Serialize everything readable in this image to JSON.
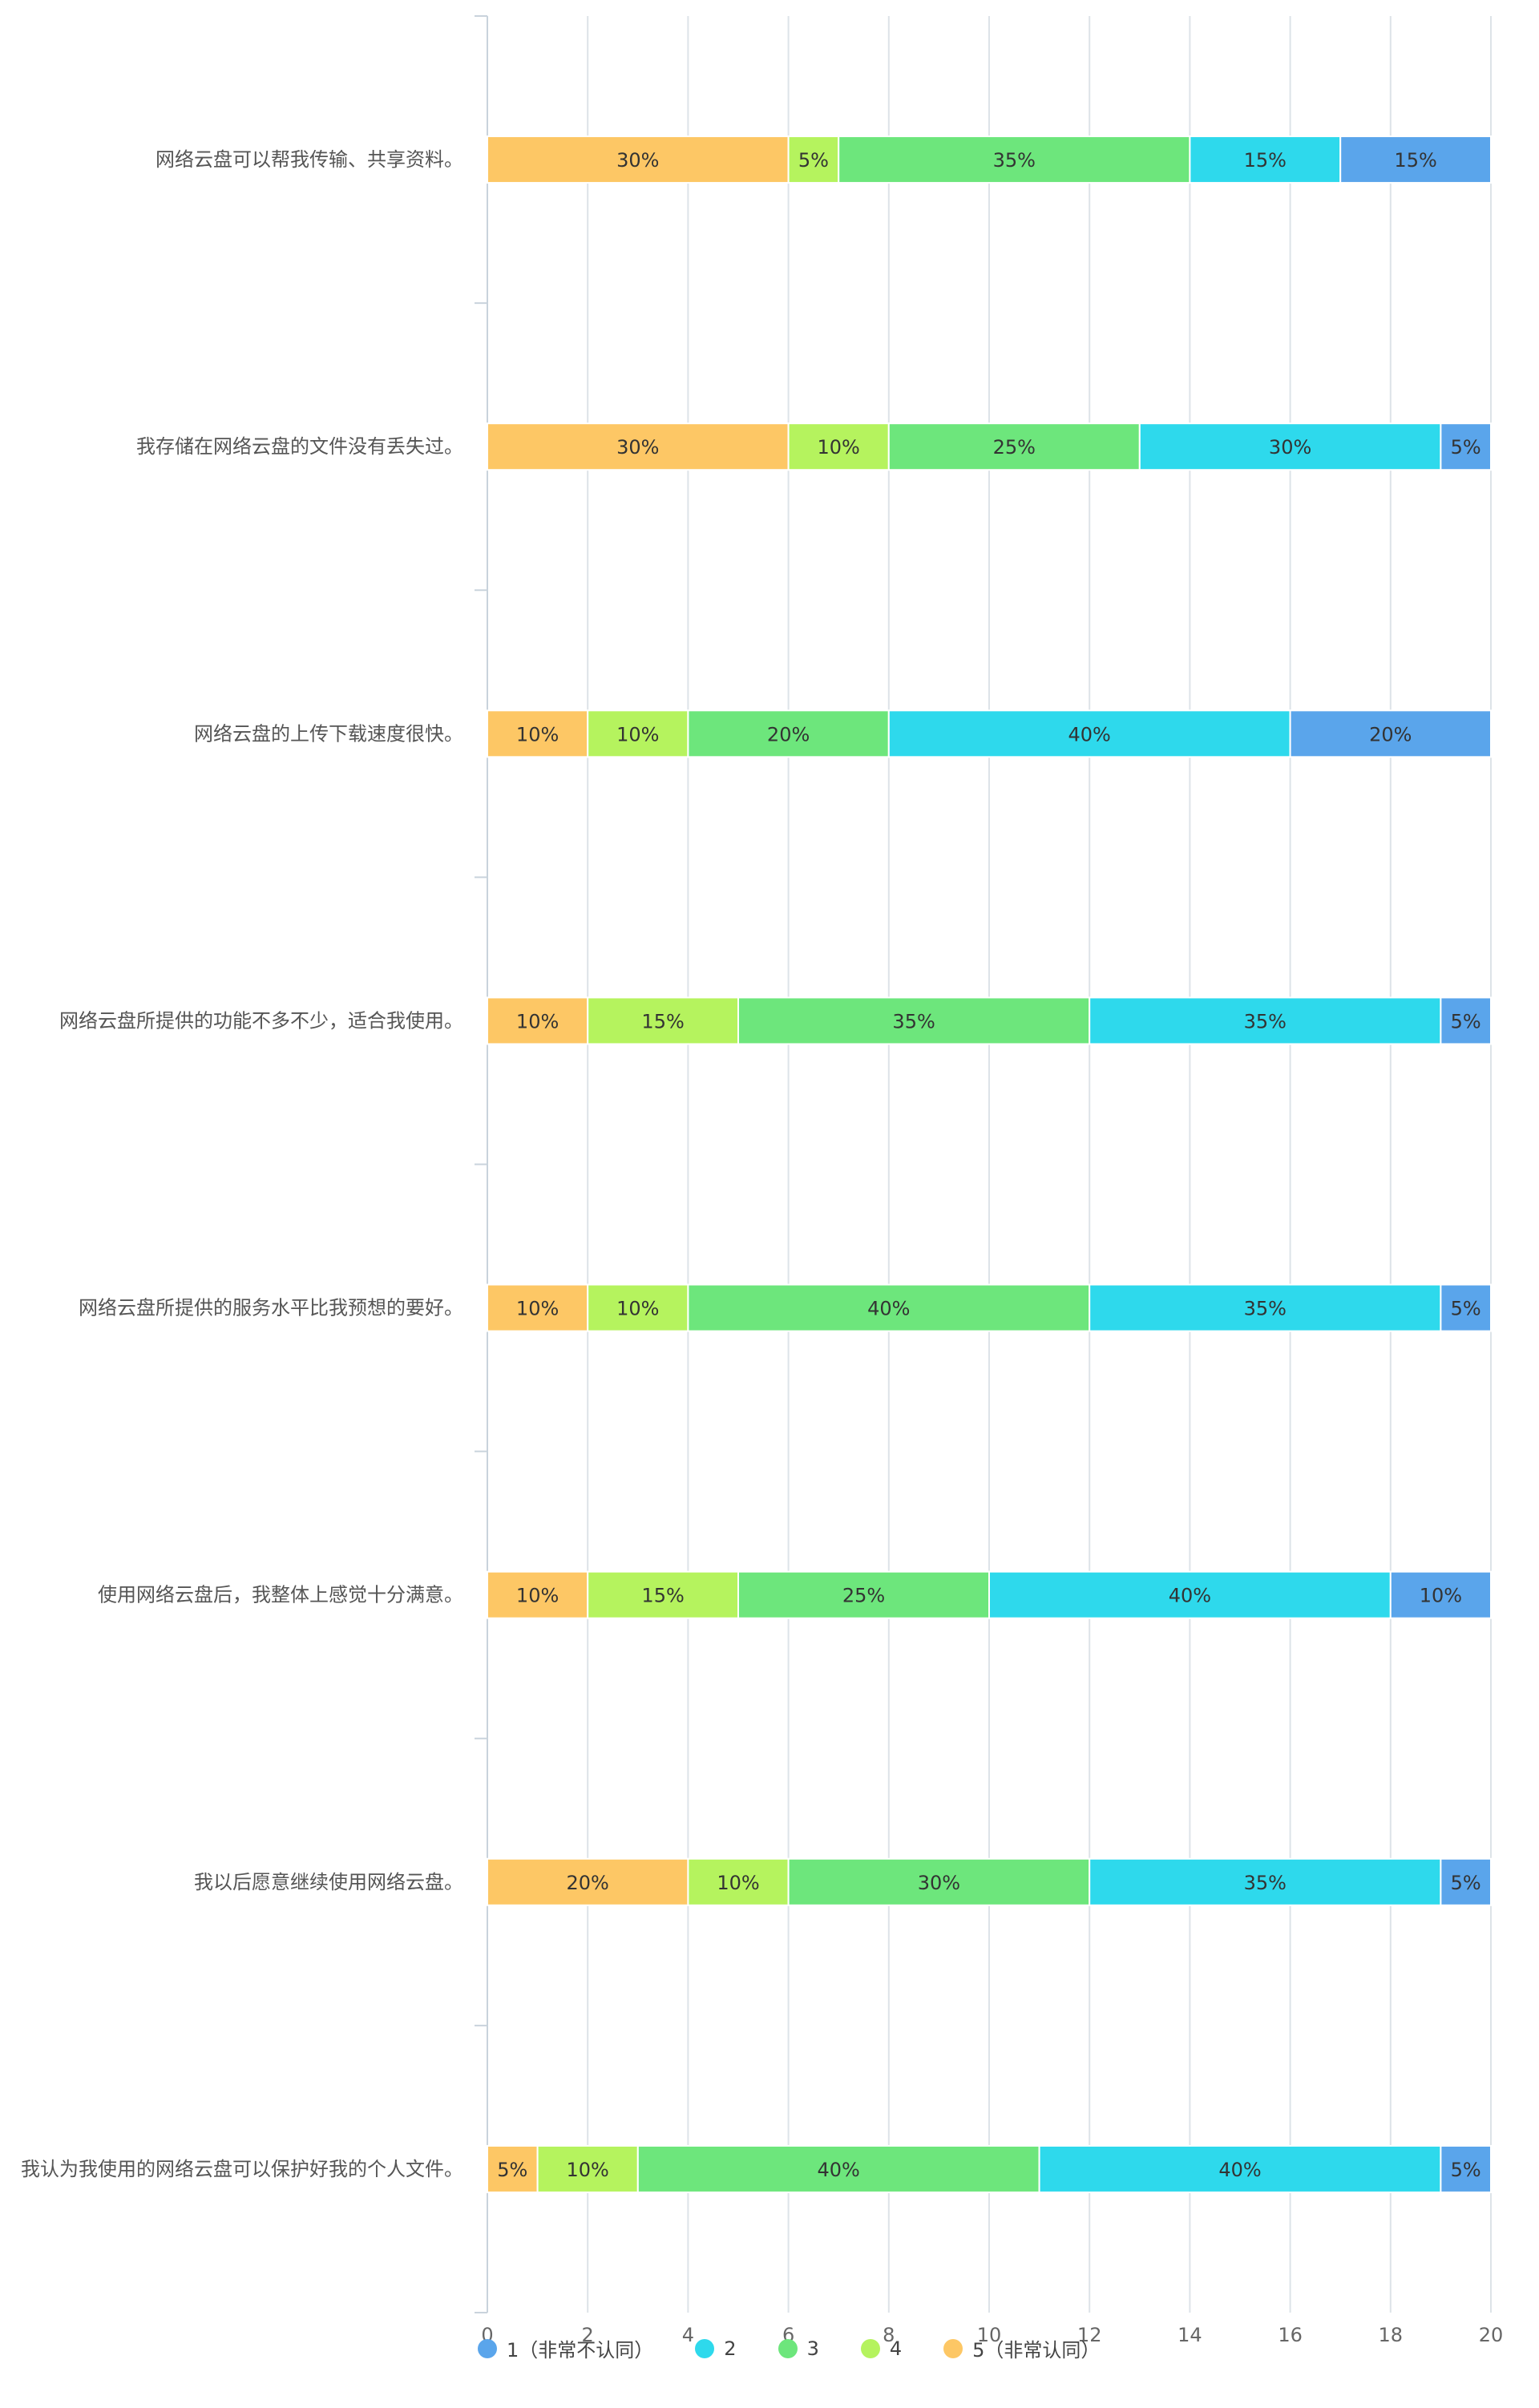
{
  "chart_data": {
    "type": "bar",
    "orientation": "horizontal",
    "stacked": true,
    "title": "",
    "xlabel": "",
    "ylabel": "",
    "xlim": [
      0,
      20
    ],
    "x_ticks": [
      0,
      2,
      4,
      6,
      8,
      10,
      12,
      14,
      16,
      18,
      20
    ],
    "grid": true,
    "legend_position": "bottom",
    "categories": [
      "网络云盘可以帮我传输、共享资料。",
      "我存储在网络云盘的文件没有丢失过。",
      "网络云盘的上传下载速度很快。",
      "网络云盘所提供的功能不多不少，适合我使用。",
      "网络云盘所提供的服务水平比我预想的要好。",
      "使用网络云盘后，我整体上感觉十分满意。",
      "我以后愿意继续使用网络云盘。",
      "我认为我使用的网络云盘可以保护好我的个人文件。"
    ],
    "stack_order": [
      4,
      3,
      2,
      1,
      0
    ],
    "series": [
      {
        "name": "1（非常不认同）",
        "color": "#5aa5eb",
        "values": [
          3,
          1,
          4,
          1,
          1,
          2,
          1,
          1
        ],
        "labels": [
          "15%",
          "5%",
          "20%",
          "5%",
          "5%",
          "10%",
          "5%",
          "5%"
        ]
      },
      {
        "name": "2",
        "color": "#2ed9ec",
        "values": [
          3,
          6,
          8,
          7,
          7,
          8,
          7,
          8
        ],
        "labels": [
          "15%",
          "30%",
          "40%",
          "35%",
          "35%",
          "40%",
          "35%",
          "40%"
        ]
      },
      {
        "name": "3",
        "color": "#6de67c",
        "values": [
          7,
          5,
          4,
          7,
          8,
          5,
          6,
          8
        ],
        "labels": [
          "35%",
          "25%",
          "20%",
          "35%",
          "40%",
          "25%",
          "30%",
          "40%"
        ]
      },
      {
        "name": "4",
        "color": "#b5f35e",
        "values": [
          1,
          2,
          2,
          3,
          2,
          3,
          2,
          2
        ],
        "labels": [
          "5%",
          "10%",
          "10%",
          "15%",
          "10%",
          "15%",
          "10%",
          "10%"
        ]
      },
      {
        "name": "5（非常认同）",
        "color": "#fdc765",
        "values": [
          6,
          6,
          2,
          2,
          2,
          2,
          4,
          1
        ],
        "labels": [
          "30%",
          "30%",
          "10%",
          "10%",
          "10%",
          "10%",
          "20%",
          "5%"
        ]
      }
    ]
  }
}
